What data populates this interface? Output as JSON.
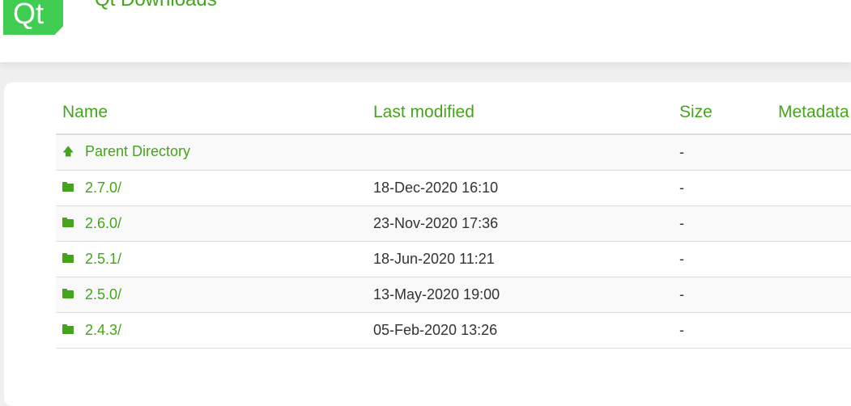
{
  "header": {
    "logo": "Qt",
    "title": "Qt Downloads"
  },
  "table": {
    "columns": [
      "Name",
      "Last modified",
      "Size",
      "Metadata"
    ],
    "rows": [
      {
        "name": "Parent Directory",
        "icon": "arrow-up-icon",
        "modified": "",
        "size": "-"
      },
      {
        "name": "2.7.0/",
        "icon": "folder-icon",
        "modified": "18-Dec-2020 16:10",
        "size": "-"
      },
      {
        "name": "2.6.0/",
        "icon": "folder-icon",
        "modified": "23-Nov-2020 17:36",
        "size": "-"
      },
      {
        "name": "2.5.1/",
        "icon": "folder-icon",
        "modified": "18-Jun-2020 11:21",
        "size": "-"
      },
      {
        "name": "2.5.0/",
        "icon": "folder-icon",
        "modified": "13-May-2020 19:00",
        "size": "-"
      },
      {
        "name": "2.4.3/",
        "icon": "folder-icon",
        "modified": "05-Feb-2020 13:26",
        "size": "-"
      }
    ]
  },
  "colors": {
    "accent": "#44a51c",
    "logo": "#41cd52"
  }
}
